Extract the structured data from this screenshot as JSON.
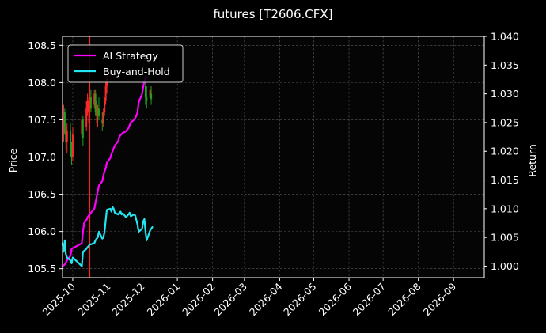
{
  "chart_data": {
    "type": "line",
    "title": "futures [T2606.CFX]",
    "ylabel_left": "Price",
    "ylabel_right": "Return",
    "ylim_left": [
      105.38,
      108.62
    ],
    "ylim_right": [
      0.998,
      1.04
    ],
    "yticks_left": [
      105.5,
      106.0,
      106.5,
      107.0,
      107.5,
      108.0,
      108.5
    ],
    "yticks_left_labels": [
      "105.5",
      "106.0",
      "106.5",
      "107.0",
      "107.5",
      "108.0",
      "108.5"
    ],
    "yticks_right": [
      1.0,
      1.005,
      1.01,
      1.015,
      1.02,
      1.025,
      1.03,
      1.035,
      1.04
    ],
    "yticks_right_labels": [
      "1.000",
      "1.005",
      "1.010",
      "1.015",
      "1.020",
      "1.025",
      "1.030",
      "1.035",
      "1.040"
    ],
    "xlim": [
      "2025-09-22",
      "2026-09-28"
    ],
    "xticks": [
      "2025-10-01",
      "2025-11-01",
      "2025-12-01",
      "2026-01-01",
      "2026-02-01",
      "2026-03-01",
      "2026-04-01",
      "2026-05-01",
      "2026-06-01",
      "2026-07-01",
      "2026-08-01",
      "2026-09-01"
    ],
    "xtick_labels": [
      "2025-10",
      "2025-11",
      "2025-12",
      "2026-01",
      "2026-02",
      "2026-03",
      "2026-04",
      "2026-05",
      "2026-06",
      "2026-07",
      "2026-08",
      "2026-09"
    ],
    "grid": true,
    "legend_position": "upper-left",
    "marker_line": {
      "date": "2025-10-16",
      "color": "#ff2020"
    },
    "series": [
      {
        "name": "AI Strategy",
        "color": "#ff00ff",
        "axis": "right",
        "points": [
          [
            "2025-09-22",
            1.0
          ],
          [
            "2025-09-24",
            1.0003
          ],
          [
            "2025-09-26",
            1.001
          ],
          [
            "2025-09-29",
            1.0018
          ],
          [
            "2025-09-30",
            1.003
          ],
          [
            "2025-10-09",
            1.004
          ],
          [
            "2025-10-10",
            1.006
          ],
          [
            "2025-10-11",
            1.0075
          ],
          [
            "2025-10-13",
            1.008
          ],
          [
            "2025-10-14",
            1.0085
          ],
          [
            "2025-10-15",
            1.0088
          ],
          [
            "2025-10-16",
            1.009
          ],
          [
            "2025-10-17",
            1.0093
          ],
          [
            "2025-10-20",
            1.01
          ],
          [
            "2025-10-21",
            1.011
          ],
          [
            "2025-10-22",
            1.012
          ],
          [
            "2025-10-23",
            1.013
          ],
          [
            "2025-10-24",
            1.014
          ],
          [
            "2025-10-27",
            1.0148
          ],
          [
            "2025-10-28",
            1.0158
          ],
          [
            "2025-10-29",
            1.0165
          ],
          [
            "2025-10-30",
            1.017
          ],
          [
            "2025-10-31",
            1.018
          ],
          [
            "2025-11-03",
            1.0188
          ],
          [
            "2025-11-04",
            1.0195
          ],
          [
            "2025-11-05",
            1.02
          ],
          [
            "2025-11-06",
            1.0205
          ],
          [
            "2025-11-07",
            1.021
          ],
          [
            "2025-11-10",
            1.0218
          ],
          [
            "2025-11-11",
            1.0225
          ],
          [
            "2025-11-12",
            1.0228
          ],
          [
            "2025-11-13",
            1.023
          ],
          [
            "2025-11-14",
            1.0232
          ],
          [
            "2025-11-17",
            1.0235
          ],
          [
            "2025-11-18",
            1.0238
          ],
          [
            "2025-11-19",
            1.024
          ],
          [
            "2025-11-20",
            1.0245
          ],
          [
            "2025-11-21",
            1.025
          ],
          [
            "2025-11-24",
            1.0255
          ],
          [
            "2025-11-25",
            1.0258
          ],
          [
            "2025-11-26",
            1.0262
          ],
          [
            "2025-11-27",
            1.0268
          ],
          [
            "2025-11-28",
            1.0285
          ],
          [
            "2025-12-01",
            1.03
          ],
          [
            "2025-12-02",
            1.0312
          ],
          [
            "2025-12-03",
            1.0322
          ],
          [
            "2025-12-04",
            1.033
          ]
        ]
      },
      {
        "name": "Buy-and-Hold",
        "color": "#22e6f2",
        "axis": "right",
        "points": [
          [
            "2025-09-22",
            1.004
          ],
          [
            "2025-09-23",
            1.0025
          ],
          [
            "2025-09-24",
            1.0045
          ],
          [
            "2025-09-25",
            1.002
          ],
          [
            "2025-09-26",
            1.0015
          ],
          [
            "2025-09-29",
            1.001
          ],
          [
            "2025-09-30",
            1.0005
          ],
          [
            "2025-10-01",
            1.0015
          ],
          [
            "2025-10-09",
            1.0
          ],
          [
            "2025-10-10",
            1.0025
          ],
          [
            "2025-10-13",
            1.003
          ],
          [
            "2025-10-14",
            1.0033
          ],
          [
            "2025-10-15",
            1.0035
          ],
          [
            "2025-10-16",
            1.0038
          ],
          [
            "2025-10-17",
            1.0038
          ],
          [
            "2025-10-20",
            1.004
          ],
          [
            "2025-10-21",
            1.0045
          ],
          [
            "2025-10-22",
            1.0048
          ],
          [
            "2025-10-23",
            1.005
          ],
          [
            "2025-10-24",
            1.006
          ],
          [
            "2025-10-27",
            1.0048
          ],
          [
            "2025-10-28",
            1.005
          ],
          [
            "2025-10-29",
            1.006
          ],
          [
            "2025-10-30",
            1.008
          ],
          [
            "2025-10-31",
            1.0098
          ],
          [
            "2025-11-03",
            1.01
          ],
          [
            "2025-11-04",
            1.0095
          ],
          [
            "2025-11-05",
            1.0103
          ],
          [
            "2025-11-06",
            1.01
          ],
          [
            "2025-11-07",
            1.0093
          ],
          [
            "2025-11-10",
            1.009
          ],
          [
            "2025-11-11",
            1.0093
          ],
          [
            "2025-11-12",
            1.0095
          ],
          [
            "2025-11-13",
            1.009
          ],
          [
            "2025-11-14",
            1.0092
          ],
          [
            "2025-11-17",
            1.0085
          ],
          [
            "2025-11-18",
            1.0088
          ],
          [
            "2025-11-19",
            1.009
          ],
          [
            "2025-11-20",
            1.0093
          ],
          [
            "2025-11-21",
            1.0087
          ],
          [
            "2025-11-24",
            1.009
          ],
          [
            "2025-11-25",
            1.0088
          ],
          [
            "2025-11-26",
            1.008
          ],
          [
            "2025-11-27",
            1.0072
          ],
          [
            "2025-11-28",
            1.006
          ],
          [
            "2025-12-01",
            1.0065
          ],
          [
            "2025-12-02",
            1.0078
          ],
          [
            "2025-12-03",
            1.0082
          ],
          [
            "2025-12-04",
            1.006
          ],
          [
            "2025-12-05",
            1.0045
          ],
          [
            "2025-12-08",
            1.0062
          ],
          [
            "2025-12-09",
            1.0065
          ],
          [
            "2025-12-10",
            1.0068
          ]
        ]
      }
    ],
    "candles": [
      [
        "2025-09-22",
        107.4,
        107.6,
        107.1,
        107.3
      ],
      [
        "2025-09-23",
        107.3,
        107.7,
        107.2,
        107.6
      ],
      [
        "2025-09-24",
        107.6,
        107.65,
        107.3,
        107.4
      ],
      [
        "2025-09-25",
        107.4,
        107.55,
        107.1,
        107.2
      ],
      [
        "2025-09-26",
        107.2,
        107.45,
        107.05,
        107.35
      ],
      [
        "2025-09-29",
        107.35,
        107.45,
        107.0,
        107.1
      ],
      [
        "2025-09-30",
        107.1,
        107.2,
        106.9,
        107.0
      ],
      [
        "2025-10-01",
        107.0,
        107.4,
        106.95,
        107.3
      ],
      [
        "2025-10-09",
        107.3,
        107.6,
        107.25,
        107.5
      ],
      [
        "2025-10-10",
        107.5,
        107.55,
        107.15,
        107.25
      ],
      [
        "2025-10-13",
        107.4,
        107.75,
        107.35,
        107.65
      ],
      [
        "2025-10-14",
        107.65,
        107.85,
        107.55,
        107.75
      ],
      [
        "2025-10-15",
        107.6,
        107.8,
        107.45,
        107.7
      ],
      [
        "2025-10-16",
        107.7,
        107.85,
        107.55,
        107.8
      ],
      [
        "2025-10-17",
        107.8,
        107.9,
        107.6,
        107.65
      ],
      [
        "2025-10-20",
        107.7,
        107.9,
        107.65,
        107.85
      ],
      [
        "2025-10-21",
        107.85,
        107.9,
        107.55,
        107.6
      ],
      [
        "2025-10-22",
        107.6,
        107.75,
        107.45,
        107.55
      ],
      [
        "2025-10-23",
        107.55,
        107.7,
        107.4,
        107.65
      ],
      [
        "2025-10-24",
        107.65,
        107.8,
        107.5,
        107.55
      ],
      [
        "2025-10-27",
        107.5,
        107.6,
        107.35,
        107.45
      ],
      [
        "2025-10-28",
        107.45,
        107.65,
        107.4,
        107.6
      ],
      [
        "2025-10-29",
        107.6,
        107.8,
        107.55,
        107.75
      ],
      [
        "2025-10-30",
        107.75,
        108.0,
        107.7,
        107.95
      ],
      [
        "2025-10-31",
        107.95,
        108.1,
        107.85,
        108.05
      ],
      [
        "2025-12-04",
        107.95,
        108.05,
        107.7,
        107.8
      ],
      [
        "2025-12-05",
        107.8,
        107.95,
        107.65,
        107.75
      ],
      [
        "2025-12-08",
        107.8,
        107.95,
        107.75,
        107.9
      ],
      [
        "2025-12-09",
        107.85,
        107.95,
        107.7,
        107.78
      ]
    ]
  }
}
